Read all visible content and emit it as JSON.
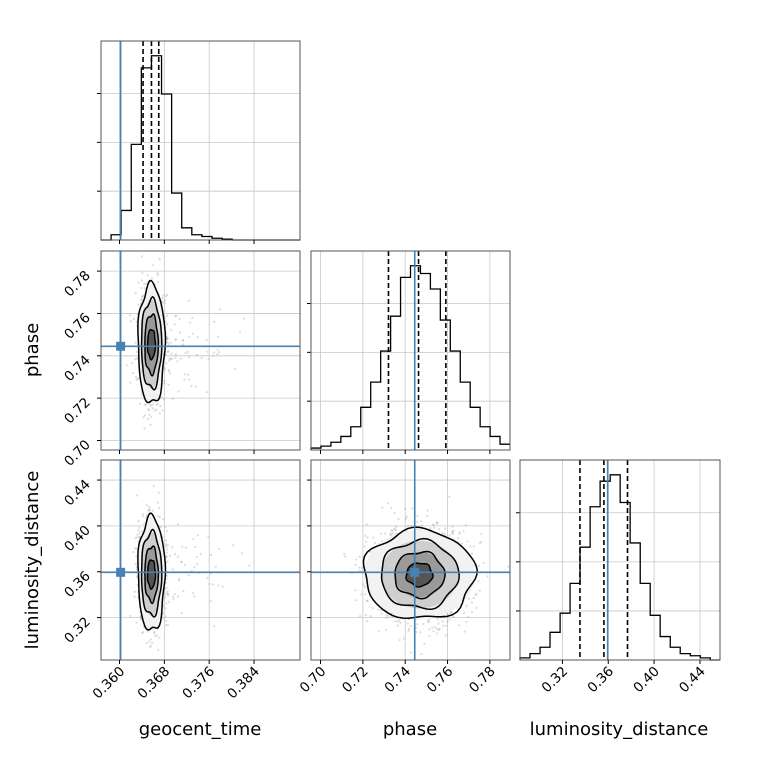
{
  "chart_data": {
    "type": "corner",
    "parameters": [
      "geocent_time",
      "phase",
      "luminosity_distance"
    ],
    "injection": {
      "geocent_time": 0.3602,
      "phase": 0.7445,
      "luminosity_distance": 0.3595
    },
    "colors": {
      "injection": "#4682b4",
      "hist": "#000000",
      "quantile": "#000000",
      "grid": "#c8c8c8",
      "scatter": "#9a9a9a"
    },
    "grid": true,
    "axes": {
      "geocent_time": {
        "range": [
          0.3567,
          0.3922
        ],
        "ticks": [
          0.36,
          0.368,
          0.376,
          0.384
        ],
        "tick_labels": [
          "0.360",
          "0.368",
          "0.376",
          "0.384"
        ]
      },
      "phase": {
        "range": [
          0.6955,
          0.7895
        ],
        "ticks": [
          0.7,
          0.72,
          0.74,
          0.76,
          0.78
        ],
        "tick_labels": [
          "0.70",
          "0.72",
          "0.74",
          "0.76",
          "0.78"
        ]
      },
      "luminosity_distance": {
        "range": [
          0.283,
          0.4575
        ],
        "ticks": [
          0.32,
          0.36,
          0.4,
          0.44
        ],
        "tick_labels": [
          "0.32",
          "0.36",
          "0.40",
          "0.44"
        ]
      }
    },
    "marginals": {
      "geocent_time": {
        "bins": [
          0.3567,
          0.3585,
          0.3603,
          0.3621,
          0.3639,
          0.3657,
          0.3675,
          0.3693,
          0.3711,
          0.3729,
          0.3747,
          0.3765,
          0.3783,
          0.3801,
          0.3819,
          0.3837,
          0.3855,
          0.3873,
          0.3891,
          0.3909,
          0.3922
        ],
        "counts": [
          0,
          0.03,
          0.17,
          0.55,
          0.99,
          1.06,
          0.84,
          0.27,
          0.07,
          0.03,
          0.02,
          0.01,
          0.005,
          0,
          0,
          0,
          0,
          0,
          0,
          0
        ],
        "quantiles": [
          0.3642,
          0.3657,
          0.367
        ]
      },
      "phase": {
        "bins": [
          0.6955,
          0.7002,
          0.7049,
          0.7096,
          0.7143,
          0.719,
          0.7237,
          0.7284,
          0.7331,
          0.7378,
          0.7425,
          0.7472,
          0.7519,
          0.7566,
          0.7613,
          0.766,
          0.7707,
          0.7754,
          0.7801,
          0.7848,
          0.7895
        ],
        "counts": [
          0.01,
          0.02,
          0.04,
          0.07,
          0.12,
          0.22,
          0.35,
          0.51,
          0.69,
          0.89,
          0.95,
          0.91,
          0.83,
          0.67,
          0.51,
          0.35,
          0.22,
          0.12,
          0.07,
          0.03
        ],
        "quantiles": [
          0.7321,
          0.7463,
          0.7592
        ]
      },
      "luminosity_distance": {
        "bins": [
          0.283,
          0.2917,
          0.3005,
          0.3092,
          0.318,
          0.3267,
          0.3354,
          0.3442,
          0.3529,
          0.3617,
          0.3704,
          0.3791,
          0.3879,
          0.3966,
          0.4053,
          0.4141,
          0.4228,
          0.4316,
          0.4403,
          0.449,
          0.4575
        ],
        "counts": [
          0.01,
          0.03,
          0.06,
          0.13,
          0.22,
          0.36,
          0.53,
          0.72,
          0.84,
          0.87,
          0.74,
          0.55,
          0.36,
          0.21,
          0.11,
          0.06,
          0.03,
          0.02,
          0.01,
          0
        ],
        "quantiles": [
          0.3353,
          0.3562,
          0.3768
        ]
      }
    },
    "joint": {
      "phase_vs_geocent_time": {
        "x_param": "geocent_time",
        "y_param": "phase",
        "center": [
          0.3657,
          0.7455
        ],
        "sigma": [
          0.0011,
          0.0118
        ],
        "contours": [
          {
            "rx": 0.0007,
            "ry": 0.007
          },
          {
            "rx": 0.0012,
            "ry": 0.014
          },
          {
            "rx": 0.0018,
            "ry": 0.021
          },
          {
            "rx": 0.0024,
            "ry": 0.0283
          }
        ]
      },
      "luminosity_distance_vs_geocent_time": {
        "x_param": "geocent_time",
        "y_param": "luminosity_distance",
        "center": [
          0.3657,
          0.358
        ],
        "sigma": [
          0.0011,
          0.0215
        ],
        "contours": [
          {
            "rx": 0.0007,
            "ry": 0.0125
          },
          {
            "rx": 0.0012,
            "ry": 0.024
          },
          {
            "rx": 0.0018,
            "ry": 0.0365
          },
          {
            "rx": 0.0024,
            "ry": 0.05
          }
        ]
      },
      "luminosity_distance_vs_phase": {
        "x_param": "phase",
        "y_param": "luminosity_distance",
        "center": [
          0.7467,
          0.3575
        ],
        "sigma": [
          0.0118,
          0.0205
        ],
        "contours": [
          {
            "rx": 0.0062,
            "ry": 0.0102
          },
          {
            "rx": 0.0118,
            "ry": 0.0198
          },
          {
            "rx": 0.0183,
            "ry": 0.0295
          },
          {
            "rx": 0.0262,
            "ry": 0.039
          }
        ]
      }
    },
    "xlabels": [
      "geocent_time",
      "phase",
      "luminosity_distance"
    ],
    "ylabels": [
      "",
      "phase",
      "luminosity_distance"
    ]
  }
}
